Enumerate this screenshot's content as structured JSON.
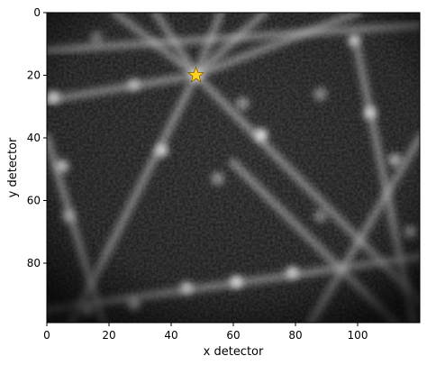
{
  "chart_data": {
    "type": "heatmap",
    "xlabel": "x detector",
    "ylabel": "y detector",
    "xlim": [
      0,
      120
    ],
    "ylim": [
      99,
      0
    ],
    "x_ticks": [
      0,
      20,
      40,
      60,
      80,
      100
    ],
    "y_ticks": [
      0,
      20,
      40,
      60,
      80
    ],
    "colormap": "gray",
    "grid": false,
    "marker": {
      "x": 48,
      "y": 20,
      "shape": "star",
      "color": "#FFD21F"
    },
    "bands": [
      {
        "x1": 48,
        "y1": 20,
        "x2": 100,
        "y2": 0
      },
      {
        "x1": 48,
        "y1": 20,
        "x2": 0,
        "y2": 28
      },
      {
        "x1": 48,
        "y1": 20,
        "x2": 8,
        "y2": 99
      },
      {
        "x1": 48,
        "y1": 20,
        "x2": 120,
        "y2": 92
      },
      {
        "x1": 48,
        "y1": 20,
        "x2": 35,
        "y2": 0
      },
      {
        "x1": 48,
        "y1": 20,
        "x2": 56,
        "y2": 0
      },
      {
        "x1": 48,
        "y1": 20,
        "x2": 70,
        "y2": 0
      },
      {
        "x1": 48,
        "y1": 20,
        "x2": 22,
        "y2": 0
      },
      {
        "x1": 100,
        "y1": 12,
        "x2": 118,
        "y2": 99
      },
      {
        "x1": 18,
        "y1": 99,
        "x2": 0,
        "y2": 40
      },
      {
        "x1": 60,
        "y1": 48,
        "x2": 112,
        "y2": 99
      },
      {
        "x1": 0,
        "y1": 95,
        "x2": 120,
        "y2": 78
      },
      {
        "x1": 0,
        "y1": 12,
        "x2": 120,
        "y2": 4
      },
      {
        "x1": 85,
        "y1": 99,
        "x2": 120,
        "y2": 40
      }
    ],
    "spots": [
      {
        "x": 2,
        "y": 27,
        "v": 0.9
      },
      {
        "x": 5,
        "y": 49,
        "v": 0.8
      },
      {
        "x": 7,
        "y": 65,
        "v": 0.6
      },
      {
        "x": 13,
        "y": 95,
        "v": 0.8
      },
      {
        "x": 28,
        "y": 93,
        "v": 0.7
      },
      {
        "x": 45,
        "y": 88,
        "v": 0.8
      },
      {
        "x": 61,
        "y": 86,
        "v": 0.95
      },
      {
        "x": 79,
        "y": 83,
        "v": 0.85
      },
      {
        "x": 99,
        "y": 9,
        "v": 0.9
      },
      {
        "x": 104,
        "y": 32,
        "v": 0.85
      },
      {
        "x": 112,
        "y": 47,
        "v": 0.7
      },
      {
        "x": 117,
        "y": 70,
        "v": 0.6
      },
      {
        "x": 37,
        "y": 44,
        "v": 0.8
      },
      {
        "x": 69,
        "y": 39,
        "v": 0.85
      },
      {
        "x": 55,
        "y": 53,
        "v": 0.5
      },
      {
        "x": 16,
        "y": 8,
        "v": 0.4
      },
      {
        "x": 28,
        "y": 23,
        "v": 0.6
      },
      {
        "x": 63,
        "y": 29,
        "v": 0.5
      },
      {
        "x": 88,
        "y": 26,
        "v": 0.5
      },
      {
        "x": 88,
        "y": 65,
        "v": 0.45
      }
    ]
  }
}
